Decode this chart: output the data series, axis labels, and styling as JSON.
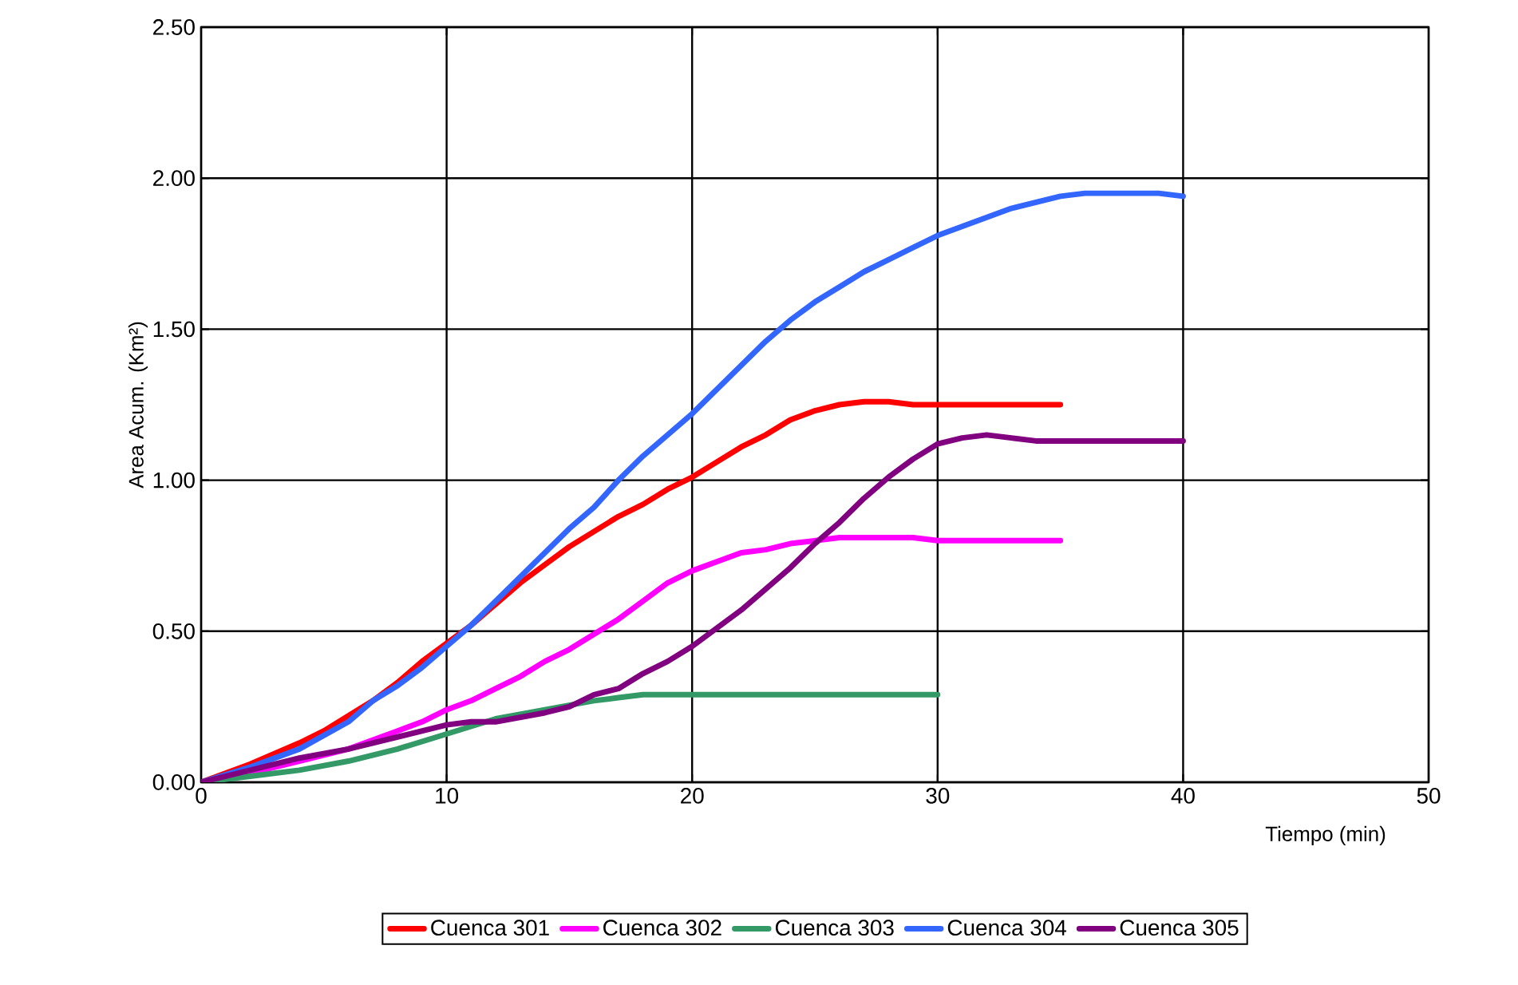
{
  "chart_data": {
    "type": "line",
    "xlabel": "Tiempo (min)",
    "ylabel": "Area Acum. (Km²)",
    "xlim": [
      0,
      50
    ],
    "xticks": [
      0,
      10,
      20,
      30,
      40,
      50
    ],
    "ylim": [
      0,
      2.5
    ],
    "yticks": [
      {
        "value": 0,
        "label": "0.00"
      },
      {
        "value": 0.5,
        "label": "0.50"
      },
      {
        "value": 1,
        "label": "1.00"
      },
      {
        "value": 1.5,
        "label": "1.50"
      },
      {
        "value": 2,
        "label": "2.00"
      },
      {
        "value": 2.5,
        "label": "2.50"
      }
    ],
    "grid": true,
    "legend": "bottom",
    "marker": "none",
    "line_style": "solid",
    "series": [
      {
        "name": "Cuenca 301",
        "color": "#ff0000",
        "x": [
          0,
          2,
          4,
          5,
          6,
          7,
          8,
          9,
          10,
          11,
          12,
          13,
          14,
          15,
          16,
          17,
          18,
          19,
          20,
          21,
          22,
          23,
          24,
          25,
          26,
          27,
          28,
          29,
          30,
          35
        ],
        "values": [
          0,
          0.06,
          0.13,
          0.17,
          0.22,
          0.27,
          0.33,
          0.4,
          0.46,
          0.52,
          0.59,
          0.66,
          0.72,
          0.78,
          0.83,
          0.88,
          0.92,
          0.97,
          1.01,
          1.06,
          1.11,
          1.15,
          1.2,
          1.23,
          1.25,
          1.26,
          1.26,
          1.25,
          1.25,
          1.25
        ]
      },
      {
        "name": "Cuenca 302",
        "color": "#ff00ff",
        "x": [
          0,
          2,
          4,
          6,
          7,
          8,
          9,
          10,
          11,
          12,
          13,
          14,
          15,
          16,
          17,
          18,
          19,
          20,
          21,
          22,
          23,
          24,
          25,
          26,
          28,
          29,
          30,
          35
        ],
        "values": [
          0,
          0.03,
          0.07,
          0.11,
          0.14,
          0.17,
          0.2,
          0.24,
          0.27,
          0.31,
          0.35,
          0.4,
          0.44,
          0.49,
          0.54,
          0.6,
          0.66,
          0.7,
          0.73,
          0.76,
          0.77,
          0.79,
          0.8,
          0.81,
          0.81,
          0.81,
          0.8,
          0.8
        ]
      },
      {
        "name": "Cuenca 303",
        "color": "#339966",
        "x": [
          0,
          2,
          4,
          6,
          8,
          10,
          12,
          14,
          16,
          17,
          18,
          25,
          30
        ],
        "values": [
          0,
          0.02,
          0.04,
          0.07,
          0.11,
          0.16,
          0.21,
          0.24,
          0.27,
          0.28,
          0.29,
          0.29,
          0.29
        ]
      },
      {
        "name": "Cuenca 304",
        "color": "#3366ff",
        "x": [
          0,
          2,
          4,
          6,
          7,
          8,
          9,
          10,
          11,
          12,
          13,
          14,
          15,
          16,
          17,
          18,
          19,
          20,
          21,
          22,
          23,
          24,
          25,
          26,
          27,
          28,
          29,
          30,
          32,
          33,
          35,
          36,
          38,
          39,
          40
        ],
        "values": [
          0,
          0.05,
          0.11,
          0.2,
          0.27,
          0.32,
          0.38,
          0.45,
          0.52,
          0.6,
          0.68,
          0.76,
          0.84,
          0.91,
          1.0,
          1.08,
          1.15,
          1.22,
          1.3,
          1.38,
          1.46,
          1.53,
          1.59,
          1.64,
          1.69,
          1.73,
          1.77,
          1.81,
          1.87,
          1.9,
          1.94,
          1.95,
          1.95,
          1.95,
          1.94
        ]
      },
      {
        "name": "Cuenca 305",
        "color": "#800080",
        "x": [
          0,
          2,
          4,
          6,
          8,
          10,
          11,
          12,
          14,
          15,
          16,
          17,
          18,
          19,
          20,
          21,
          22,
          23,
          24,
          25,
          26,
          27,
          28,
          29,
          30,
          31,
          32,
          33,
          34,
          40
        ],
        "values": [
          0,
          0.04,
          0.08,
          0.11,
          0.15,
          0.19,
          0.2,
          0.2,
          0.23,
          0.25,
          0.29,
          0.31,
          0.36,
          0.4,
          0.45,
          0.51,
          0.57,
          0.64,
          0.71,
          0.79,
          0.86,
          0.94,
          1.01,
          1.07,
          1.12,
          1.14,
          1.15,
          1.14,
          1.13,
          1.13
        ]
      }
    ]
  }
}
